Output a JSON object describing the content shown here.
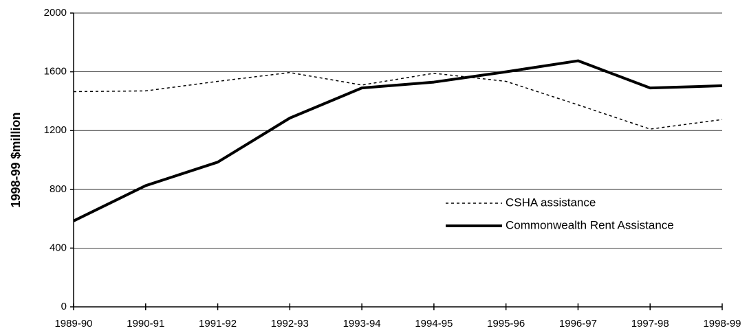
{
  "chart_data": {
    "type": "line",
    "y_label": "1998-99 $million",
    "categories": [
      "1989-90",
      "1990-91",
      "1991-92",
      "1992-93",
      "1993-94",
      "1994-95",
      "1995-96",
      "1996-97",
      "1997-98",
      "1998-99"
    ],
    "series": [
      {
        "name": "CSHA assistance",
        "color": "#000000",
        "style": "dashed",
        "values": [
          1465,
          1470,
          1535,
          1595,
          1510,
          1590,
          1535,
          1375,
          1210,
          1275
        ]
      },
      {
        "name": "Commonwealth Rent Assistance",
        "color": "#000000",
        "style": "solid",
        "values": [
          585,
          825,
          985,
          1285,
          1490,
          1530,
          1600,
          1675,
          1490,
          1505
        ]
      }
    ],
    "ylim": [
      0,
      2000
    ],
    "yticks": [
      0,
      400,
      800,
      1200,
      1600,
      2000
    ],
    "grid": true,
    "legend": "right"
  }
}
